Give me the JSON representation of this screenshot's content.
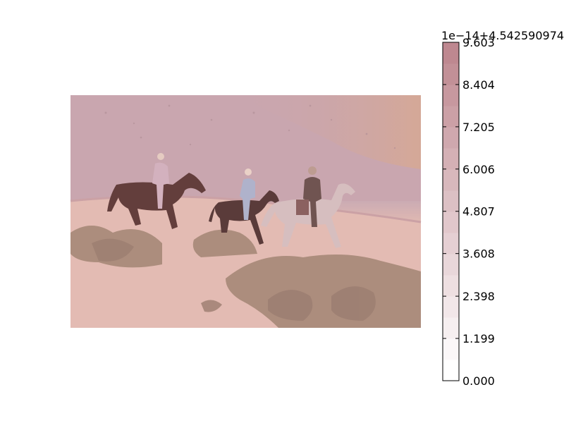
{
  "chart_data": {
    "type": "heatmap",
    "image_content": "photograph with reddish overlay",
    "colorbar": {
      "offset_label": "1e−14+4.542590974",
      "ticks": [
        "0.000",
        "1.199",
        "2.398",
        "3.608",
        "4.807",
        "6.006",
        "7.205",
        "8.404",
        "9.603"
      ],
      "range": [
        0,
        9.603
      ],
      "levels": 16,
      "colormap": "white-to-rosy-red",
      "color_low": "#ffffff",
      "color_high": "#be8890"
    }
  },
  "colors": {
    "sky_sand": "#c9a6a9",
    "wet_sand": "#b99ca3",
    "beach": "#e6c2b6",
    "grass": "#a68c7b",
    "overlay": "#d99aa2"
  }
}
